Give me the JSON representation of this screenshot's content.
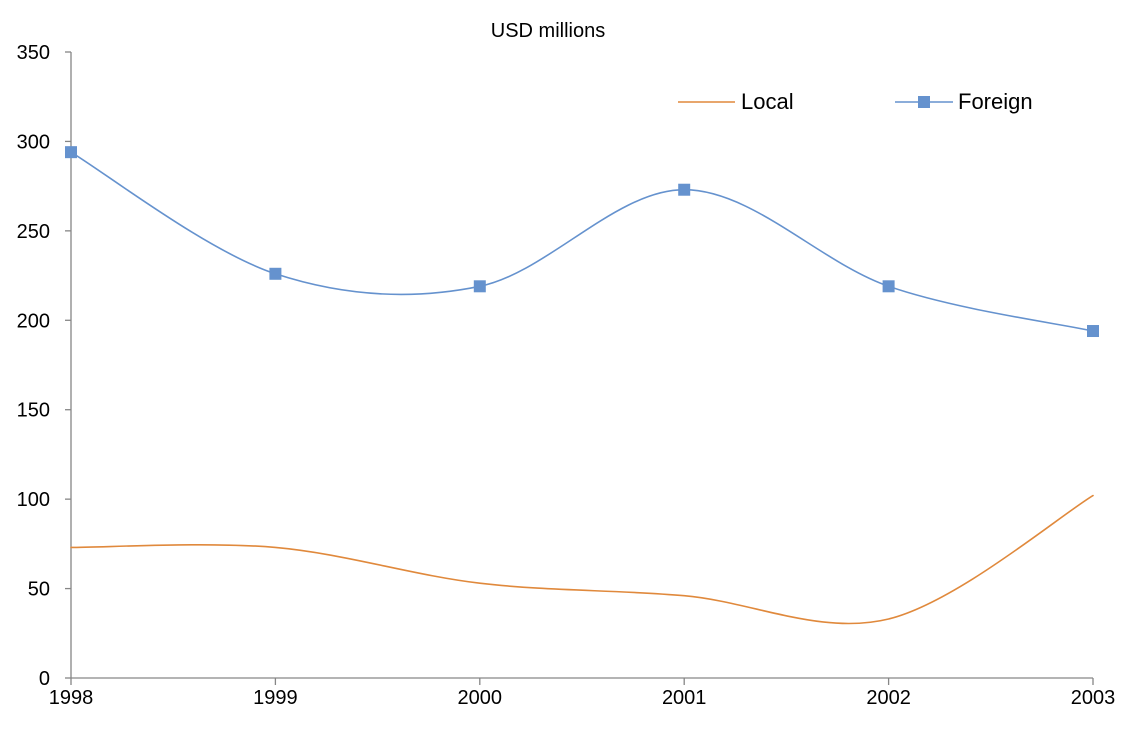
{
  "chart_data": {
    "type": "line",
    "title": "USD millions",
    "xlabel": "",
    "ylabel": "",
    "x": [
      1998,
      1999,
      2000,
      2001,
      2002,
      2003
    ],
    "xlim": [
      1998,
      2003
    ],
    "ylim": [
      0,
      350
    ],
    "y_ticks": [
      0,
      50,
      100,
      150,
      200,
      250,
      300,
      350
    ],
    "grid": false,
    "legend": {
      "placement": "top-right"
    },
    "series": [
      {
        "name": "Local",
        "color": "#E0893C",
        "marker": "none",
        "values": [
          73,
          73,
          53,
          46,
          33,
          102
        ]
      },
      {
        "name": "Foreign",
        "color": "#6592CE",
        "marker": "square",
        "values": [
          294,
          226,
          219,
          273,
          219,
          194
        ]
      }
    ]
  }
}
